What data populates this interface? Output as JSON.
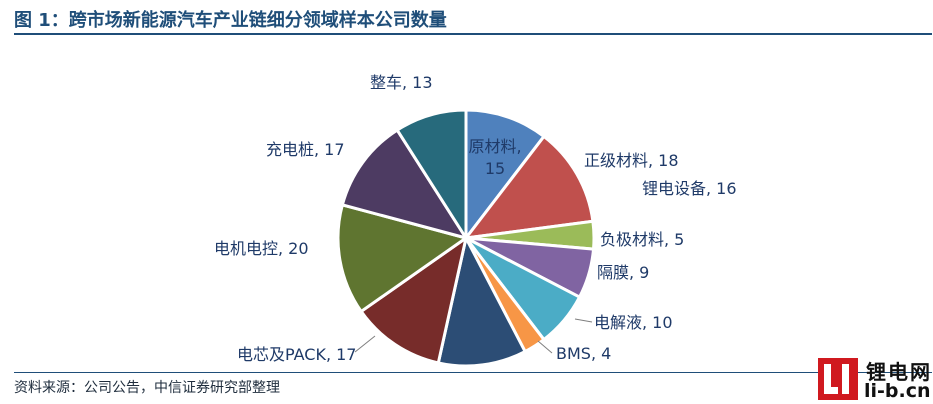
{
  "title": "图 1：跨市场新能源汽车产业链细分领域样本公司数量",
  "source": "资料来源：公司公告，中信证券研究部整理",
  "watermark": {
    "cn": "锂电网",
    "en": "li-b.cn"
  },
  "chart_data": {
    "type": "pie",
    "title": "",
    "start_angle_deg": 0,
    "direction": "clockwise",
    "slices": [
      {
        "name": "原材料",
        "value": 15,
        "label": "原材料,",
        "value_label": "15",
        "color": "#4f81bd"
      },
      {
        "name": "正级材料",
        "value": 18,
        "label": "正级材料, 18",
        "color": "#c0504d"
      },
      {
        "name": "负极材料",
        "value": 5,
        "label": "负极材料, 5",
        "color": "#9bbb59"
      },
      {
        "name": "隔膜",
        "value": 9,
        "label": "隔膜, 9",
        "color": "#8064a2"
      },
      {
        "name": "电解液",
        "value": 10,
        "label": "电解液, 10",
        "color": "#4bacc6"
      },
      {
        "name": "BMS",
        "value": 4,
        "label": "BMS, 4",
        "color": "#f79646"
      },
      {
        "name": "",
        "value": 16,
        "label": "",
        "color": "#2c4d75"
      },
      {
        "name": "电芯及PACK",
        "value": 17,
        "label": "电芯及PACK, 17",
        "color": "#772c2a"
      },
      {
        "name": "电机电控",
        "value": 20,
        "label": "电机电控, 20",
        "color": "#5f7530"
      },
      {
        "name": "充电桩",
        "value": 17,
        "label": "充电桩, 17",
        "color": "#4d3b62"
      },
      {
        "name": "整车",
        "value": 13,
        "label": "整车, 13",
        "color": "#276a7c"
      }
    ],
    "annotations": [
      {
        "text": "锂电设备, 16",
        "for": 6
      }
    ]
  }
}
